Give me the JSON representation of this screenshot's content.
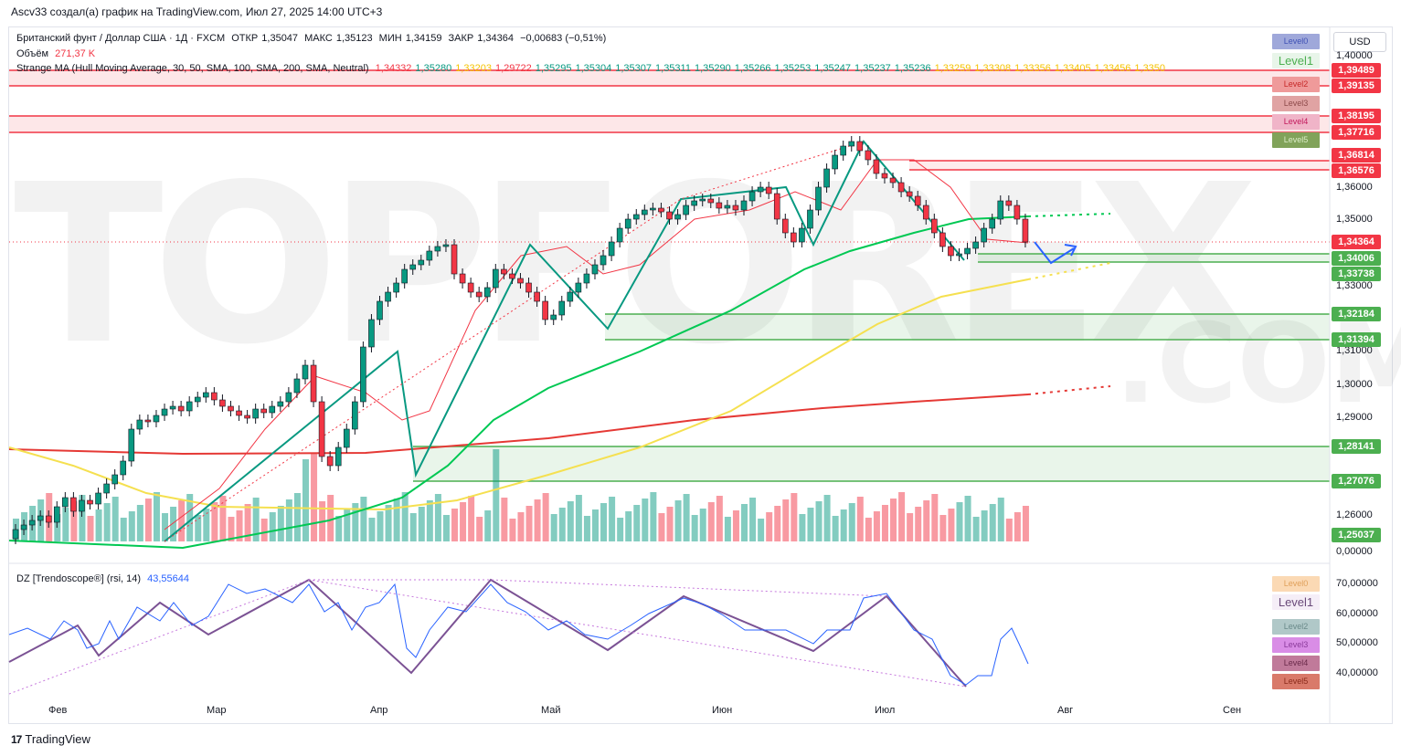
{
  "header": {
    "caption": "Ascv33 создал(a) график на TradingView.com, Июл 27, 2025 14:00 UTC+3"
  },
  "symbol_line": {
    "name": "Британский фунт / Доллар США · 1Д · FXCM",
    "open_label": "ОТКР",
    "open": "1,35047",
    "high_label": "МАКС",
    "high": "1,35123",
    "low_label": "МИН",
    "low": "1,34159",
    "close_label": "ЗАКР",
    "close": "1,34364",
    "change": "−0,00683 (−0,51%)"
  },
  "volume_line": {
    "label": "Объём",
    "value": "271,37 K"
  },
  "ma_line": {
    "label": "Strange MA (Hull Moving Average, 30, 50, SMA, 100, SMA, 200, SMA, Neutral)",
    "values": [
      {
        "v": "1,34332",
        "color": "#f23645"
      },
      {
        "v": "1,35280",
        "color": "#089981"
      },
      {
        "v": "1,33203",
        "color": "#f5c300"
      },
      {
        "v": "1,29722",
        "color": "#f23645"
      },
      {
        "v": "1,35295",
        "color": "#089981"
      },
      {
        "v": "1,35304",
        "color": "#089981"
      },
      {
        "v": "1,35307",
        "color": "#089981"
      },
      {
        "v": "1,35311",
        "color": "#089981"
      },
      {
        "v": "1,35290",
        "color": "#089981"
      },
      {
        "v": "1,35266",
        "color": "#089981"
      },
      {
        "v": "1,35253",
        "color": "#089981"
      },
      {
        "v": "1,35247",
        "color": "#089981"
      },
      {
        "v": "1,35237",
        "color": "#089981"
      },
      {
        "v": "1,35236",
        "color": "#089981"
      },
      {
        "v": "1,33259",
        "color": "#f5c300"
      },
      {
        "v": "1,33308",
        "color": "#f5c300"
      },
      {
        "v": "1,33356",
        "color": "#f5c300"
      },
      {
        "v": "1,33405",
        "color": "#f5c300"
      },
      {
        "v": "1,33456",
        "color": "#f5c300"
      },
      {
        "v": "1,3350",
        "color": "#f5c300"
      }
    ]
  },
  "currency_button": "USD",
  "price_axis": [
    "1,40000",
    "1,36000",
    "1,35000",
    "1,33000",
    "1,31000",
    "1,30000",
    "1,29000",
    "1,26000",
    "0,00000"
  ],
  "price_labels": [
    {
      "text": "1,39489",
      "color": "#f23645"
    },
    {
      "text": "1,39135",
      "color": "#f23645"
    },
    {
      "text": "1,38195",
      "color": "#f23645"
    },
    {
      "text": "1,37716",
      "color": "#f23645"
    },
    {
      "text": "1,36814",
      "color": "#f23645"
    },
    {
      "text": "1,36576",
      "color": "#f23645"
    },
    {
      "text": "1,34364",
      "color": "#f23645"
    },
    {
      "text": "1,34006",
      "color": "#4caf50"
    },
    {
      "text": "1,33738",
      "color": "#4caf50"
    },
    {
      "text": "1,32184",
      "color": "#4caf50"
    },
    {
      "text": "1,31394",
      "color": "#4caf50"
    },
    {
      "text": "1,28141",
      "color": "#4caf50"
    },
    {
      "text": "1,27076",
      "color": "#4caf50"
    },
    {
      "text": "1,25037",
      "color": "#4caf50"
    }
  ],
  "main_levels": [
    {
      "text": "Level0",
      "bg": "#9fa8da",
      "fg": "#3f51b5"
    },
    {
      "text": "Level1",
      "bg": "#e8f5e9",
      "fg": "#4caf50"
    },
    {
      "text": "Level2",
      "bg": "#ef9a9a",
      "fg": "#c62828"
    },
    {
      "text": "Level3",
      "bg": "#e0a3a3",
      "fg": "#8d4a4a"
    },
    {
      "text": "Level4",
      "bg": "#f0b4c8",
      "fg": "#c2185b"
    },
    {
      "text": "Level5",
      "bg": "#81a35a",
      "fg": "#dcedc8"
    }
  ],
  "rsi_legend": {
    "label": "DZ [Trendoscope®] (rsi, 14)",
    "value": "43,55644"
  },
  "rsi_axis": [
    "70,00000",
    "60,00000",
    "50,00000",
    "40,00000"
  ],
  "rsi_levels": [
    {
      "text": "Level0",
      "bg": "#fbd9b4",
      "fg": "#e0a05a"
    },
    {
      "text": "Level1",
      "bg": "#f5eef7",
      "fg": "#6a4a7a"
    },
    {
      "text": "Level2",
      "bg": "#b0c8c8",
      "fg": "#6a8a8a"
    },
    {
      "text": "Level3",
      "bg": "#d98de6",
      "fg": "#8a3a9a"
    },
    {
      "text": "Level4",
      "bg": "#c07a9a",
      "fg": "#6a2a4a"
    },
    {
      "text": "Level5",
      "bg": "#d97a6a",
      "fg": "#8a2a1a"
    }
  ],
  "time_axis": [
    "Фев",
    "Мар",
    "Апр",
    "Май",
    "Июн",
    "Июл",
    "Авг",
    "Сен"
  ],
  "watermark": {
    "main": "TOPFOREX",
    "sub": ".COM"
  },
  "footer": {
    "brand": "TradingView",
    "mark": "17"
  },
  "colors": {
    "up": "#089981",
    "down": "#f23645",
    "ma50": "#00c853",
    "ma100": "#f5e050",
    "ma200": "#e53935"
  }
}
